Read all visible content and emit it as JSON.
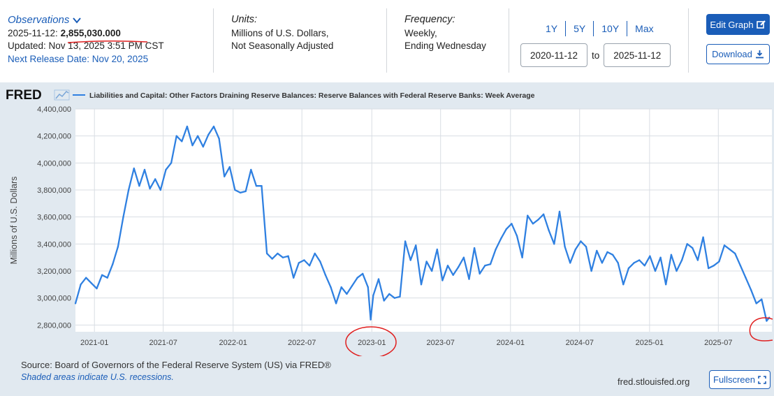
{
  "observations": {
    "title": "Observations",
    "date": "2025-11-12:",
    "value": "2,855,030.000",
    "updated": "Updated: Nov 13, 2025 3:51 PM CST",
    "next_release": "Next Release Date: Nov 20, 2025"
  },
  "units": {
    "title": "Units:",
    "line1": "Millions of U.S. Dollars,",
    "line2": "Not Seasonally Adjusted"
  },
  "frequency": {
    "title": "Frequency:",
    "line1": "Weekly,",
    "line2": "Ending Wednesday"
  },
  "range_buttons": [
    "1Y",
    "5Y",
    "10Y",
    "Max"
  ],
  "date_range": {
    "from": "2020-11-12",
    "to_label": "to",
    "to": "2025-11-12"
  },
  "buttons": {
    "edit_graph": "Edit Graph",
    "download": "Download",
    "fullscreen": "Fullscreen"
  },
  "footer": {
    "source": "Source: Board of Governors of the Federal Reserve System (US) via FRED®",
    "shaded": "Shaded areas indicate U.S. recessions.",
    "url": "fred.stlouisfed.org"
  },
  "colors": {
    "accent": "#1a5db8",
    "line": "#2f80e1",
    "annotation": "#e02020",
    "panel_bg": "#e1e9f0"
  },
  "chart_data": {
    "type": "line",
    "logo": "FRED",
    "title": "Liabilities and Capital: Other Factors Draining Reserve Balances: Reserve Balances with Federal Reserve Banks: Week Average",
    "ylabel": "Millions of U.S. Dollars",
    "xlabel": "",
    "ylim": [
      2750000,
      4400000
    ],
    "yticks": [
      2800000,
      3000000,
      3200000,
      3400000,
      3600000,
      3800000,
      4000000,
      4200000,
      4400000
    ],
    "ytick_labels": [
      "2,800,000",
      "3,000,000",
      "3,200,000",
      "3,400,000",
      "3,600,000",
      "3,800,000",
      "4,000,000",
      "4,200,000",
      "4,400,000"
    ],
    "xticks": [
      "2021-01",
      "2021-07",
      "2022-01",
      "2022-07",
      "2023-01",
      "2023-07",
      "2024-01",
      "2024-07",
      "2025-01",
      "2025-07"
    ],
    "xlim": [
      "2020-11-12",
      "2025-11-19"
    ],
    "grid": true,
    "series": [
      {
        "name": "Reserve Balances with Federal Reserve Banks: Week Average",
        "x": [
          "2020-11-12",
          "2020-11-26",
          "2020-12-10",
          "2020-12-24",
          "2021-01-07",
          "2021-01-21",
          "2021-02-04",
          "2021-02-18",
          "2021-03-04",
          "2021-03-18",
          "2021-04-01",
          "2021-04-15",
          "2021-04-29",
          "2021-05-13",
          "2021-05-27",
          "2021-06-10",
          "2021-06-24",
          "2021-07-08",
          "2021-07-22",
          "2021-08-05",
          "2021-08-19",
          "2021-09-02",
          "2021-09-16",
          "2021-09-30",
          "2021-10-14",
          "2021-10-28",
          "2021-11-11",
          "2021-11-25",
          "2021-12-09",
          "2021-12-23",
          "2022-01-06",
          "2022-01-20",
          "2022-02-03",
          "2022-02-17",
          "2022-03-03",
          "2022-03-17",
          "2022-03-31",
          "2022-04-14",
          "2022-04-28",
          "2022-05-12",
          "2022-05-26",
          "2022-06-09",
          "2022-06-23",
          "2022-07-07",
          "2022-07-21",
          "2022-08-04",
          "2022-08-18",
          "2022-09-01",
          "2022-09-15",
          "2022-09-29",
          "2022-10-13",
          "2022-10-27",
          "2022-11-10",
          "2022-11-24",
          "2022-12-08",
          "2022-12-22",
          "2022-12-29",
          "2023-01-05",
          "2023-01-19",
          "2023-02-02",
          "2023-02-16",
          "2023-03-02",
          "2023-03-16",
          "2023-03-30",
          "2023-04-13",
          "2023-04-27",
          "2023-05-11",
          "2023-05-25",
          "2023-06-08",
          "2023-06-22",
          "2023-07-06",
          "2023-07-20",
          "2023-08-03",
          "2023-08-17",
          "2023-08-31",
          "2023-09-14",
          "2023-09-28",
          "2023-10-12",
          "2023-10-26",
          "2023-11-09",
          "2023-11-23",
          "2023-12-07",
          "2023-12-21",
          "2024-01-04",
          "2024-01-18",
          "2024-02-01",
          "2024-02-15",
          "2024-02-29",
          "2024-03-14",
          "2024-03-28",
          "2024-04-11",
          "2024-04-25",
          "2024-05-09",
          "2024-05-23",
          "2024-06-06",
          "2024-06-20",
          "2024-07-04",
          "2024-07-18",
          "2024-08-01",
          "2024-08-15",
          "2024-08-29",
          "2024-09-12",
          "2024-09-26",
          "2024-10-10",
          "2024-10-24",
          "2024-11-07",
          "2024-11-21",
          "2024-12-05",
          "2024-12-19",
          "2025-01-02",
          "2025-01-16",
          "2025-01-30",
          "2025-02-13",
          "2025-02-27",
          "2025-03-13",
          "2025-03-27",
          "2025-04-10",
          "2025-04-24",
          "2025-05-08",
          "2025-05-22",
          "2025-06-05",
          "2025-06-19",
          "2025-07-03",
          "2025-07-17",
          "2025-07-31",
          "2025-08-14",
          "2025-08-28",
          "2025-09-11",
          "2025-09-25",
          "2025-10-09",
          "2025-10-23",
          "2025-11-05",
          "2025-11-12"
        ],
        "values": [
          2960000,
          3100000,
          3150000,
          3110000,
          3070000,
          3170000,
          3150000,
          3250000,
          3380000,
          3600000,
          3800000,
          3960000,
          3830000,
          3950000,
          3810000,
          3880000,
          3800000,
          3950000,
          4000000,
          4200000,
          4160000,
          4270000,
          4130000,
          4200000,
          4120000,
          4210000,
          4270000,
          4180000,
          3900000,
          3970000,
          3800000,
          3780000,
          3790000,
          3950000,
          3830000,
          3830000,
          3330000,
          3290000,
          3330000,
          3300000,
          3310000,
          3150000,
          3260000,
          3280000,
          3240000,
          3330000,
          3270000,
          3170000,
          3080000,
          2960000,
          3080000,
          3030000,
          3090000,
          3150000,
          3180000,
          3080000,
          2840000,
          3020000,
          3140000,
          2980000,
          3030000,
          3000000,
          3010000,
          3420000,
          3280000,
          3390000,
          3100000,
          3270000,
          3200000,
          3360000,
          3130000,
          3240000,
          3170000,
          3230000,
          3300000,
          3140000,
          3370000,
          3180000,
          3240000,
          3250000,
          3360000,
          3440000,
          3510000,
          3550000,
          3460000,
          3300000,
          3610000,
          3550000,
          3580000,
          3620000,
          3500000,
          3400000,
          3640000,
          3380000,
          3260000,
          3360000,
          3420000,
          3380000,
          3200000,
          3350000,
          3260000,
          3340000,
          3320000,
          3260000,
          3100000,
          3220000,
          3260000,
          3280000,
          3240000,
          3310000,
          3200000,
          3300000,
          3100000,
          3320000,
          3200000,
          3280000,
          3400000,
          3370000,
          3280000,
          3450000,
          3220000,
          3240000,
          3270000,
          3390000,
          3360000,
          3330000,
          3240000,
          3150000,
          3060000,
          2960000,
          2990000,
          2830000,
          2855030
        ]
      }
    ]
  }
}
